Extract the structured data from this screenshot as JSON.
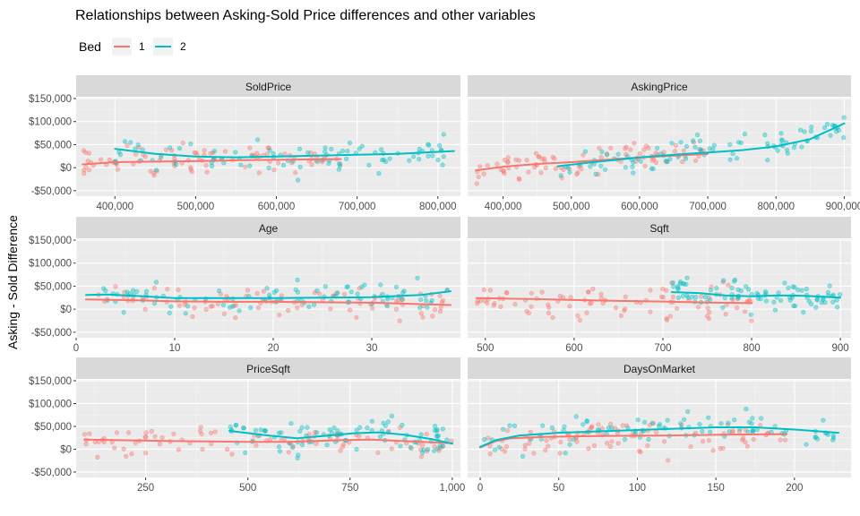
{
  "chart_data": {
    "type": "scatter",
    "title": "Relationships between Asking-Sold Price differences and other variables",
    "ylabel": "Asking - Sold Difference",
    "legend": {
      "title": "Bed",
      "position": "top-left",
      "entries": [
        {
          "label": "1",
          "color": "#F8766D"
        },
        {
          "label": "2",
          "color": "#00BFC4"
        }
      ]
    },
    "y_axis": {
      "range": [
        -62000,
        152000
      ],
      "ticks": [
        {
          "value": -50000,
          "label": "-$50,000"
        },
        {
          "value": 0,
          "label": "$0"
        },
        {
          "value": 50000,
          "label": "$50,000"
        },
        {
          "value": 100000,
          "label": "$100,000"
        },
        {
          "value": 150000,
          "label": "$150,000"
        }
      ]
    },
    "panels": [
      {
        "name": "SoldPrice",
        "xlim": [
          352000,
          828000
        ],
        "xticks": [
          {
            "value": 400000,
            "label": "400,000"
          },
          {
            "value": 500000,
            "label": "500,000"
          },
          {
            "value": 600000,
            "label": "600,000"
          },
          {
            "value": 700000,
            "label": "700,000"
          },
          {
            "value": 800000,
            "label": "800,000"
          }
        ],
        "series": [
          {
            "name": "1",
            "color": "#F8766D",
            "x_range": [
              360000,
              680000
            ],
            "smooth": [
              [
                360000,
                7000
              ],
              [
                400000,
                12000
              ],
              [
                450000,
                13000
              ],
              [
                500000,
                14000
              ],
              [
                550000,
                16000
              ],
              [
                600000,
                17000
              ],
              [
                650000,
                18000
              ],
              [
                680000,
                18500
              ]
            ]
          },
          {
            "name": "2",
            "color": "#00BFC4",
            "x_range": [
              400000,
              820000
            ],
            "smooth": [
              [
                400000,
                41000
              ],
              [
                450000,
                30000
              ],
              [
                500000,
                24000
              ],
              [
                550000,
                22500
              ],
              [
                600000,
                24000
              ],
              [
                650000,
                26000
              ],
              [
                700000,
                28000
              ],
              [
                750000,
                30000
              ],
              [
                820000,
                36000
              ]
            ]
          }
        ]
      },
      {
        "name": "AskingPrice",
        "xlim": [
          348000,
          910000
        ],
        "xticks": [
          {
            "value": 400000,
            "label": "400,000"
          },
          {
            "value": 500000,
            "label": "500,000"
          },
          {
            "value": 600000,
            "label": "600,000"
          },
          {
            "value": 700000,
            "label": "700,000"
          },
          {
            "value": 800000,
            "label": "800,000"
          },
          {
            "value": 900000,
            "label": "900,000"
          }
        ],
        "series": [
          {
            "name": "1",
            "color": "#F8766D",
            "x_range": [
              360000,
              700000
            ],
            "smooth": [
              [
                360000,
                -6000
              ],
              [
                400000,
                2000
              ],
              [
                450000,
                8000
              ],
              [
                500000,
                12000
              ],
              [
                550000,
                17000
              ],
              [
                600000,
                22000
              ],
              [
                650000,
                26000
              ],
              [
                700000,
                30000
              ]
            ]
          },
          {
            "name": "2",
            "color": "#00BFC4",
            "x_range": [
              480000,
              900000
            ],
            "smooth": [
              [
                480000,
                3000
              ],
              [
                520000,
                10000
              ],
              [
                560000,
                16000
              ],
              [
                600000,
                22000
              ],
              [
                650000,
                28000
              ],
              [
                700000,
                33000
              ],
              [
                750000,
                38000
              ],
              [
                800000,
                46000
              ],
              [
                850000,
                62000
              ],
              [
                900000,
                96000
              ]
            ]
          }
        ]
      },
      {
        "name": "Age",
        "xlim": [
          0,
          39
        ],
        "xticks": [
          {
            "value": 0,
            "label": "0"
          },
          {
            "value": 10,
            "label": "10"
          },
          {
            "value": 20,
            "label": "20"
          },
          {
            "value": 30,
            "label": "30"
          }
        ],
        "series": [
          {
            "name": "1",
            "color": "#F8766D",
            "x_range": [
              1,
              38
            ],
            "smooth": [
              [
                1,
                21000
              ],
              [
                5,
                20000
              ],
              [
                10,
                17000
              ],
              [
                15,
                16000
              ],
              [
                20,
                16000
              ],
              [
                25,
                15000
              ],
              [
                30,
                14000
              ],
              [
                38,
                9000
              ]
            ]
          },
          {
            "name": "2",
            "color": "#00BFC4",
            "x_range": [
              1,
              38
            ],
            "smooth": [
              [
                1,
                31000
              ],
              [
                3,
                32000
              ],
              [
                6,
                29000
              ],
              [
                10,
                24000
              ],
              [
                15,
                24000
              ],
              [
                20,
                24000
              ],
              [
                25,
                25000
              ],
              [
                30,
                26000
              ],
              [
                35,
                31000
              ],
              [
                38,
                39000
              ]
            ]
          }
        ]
      },
      {
        "name": "Sqft",
        "xlim": [
          480,
          912
        ],
        "xticks": [
          {
            "value": 500,
            "label": "500"
          },
          {
            "value": 600,
            "label": "600"
          },
          {
            "value": 700,
            "label": "700"
          },
          {
            "value": 800,
            "label": "800"
          },
          {
            "value": 900,
            "label": "900"
          }
        ],
        "series": [
          {
            "name": "1",
            "color": "#F8766D",
            "x_range": [
              490,
              800
            ],
            "smooth": [
              [
                490,
                24000
              ],
              [
                550,
                22000
              ],
              [
                600,
                20000
              ],
              [
                650,
                18000
              ],
              [
                700,
                16500
              ],
              [
                750,
                14500
              ],
              [
                800,
                13000
              ]
            ]
          },
          {
            "name": "2",
            "color": "#00BFC4",
            "x_range": [
              710,
              900
            ],
            "smooth": [
              [
                710,
                37000
              ],
              [
                740,
                35000
              ],
              [
                770,
                30000
              ],
              [
                800,
                28000
              ],
              [
                830,
                30000
              ],
              [
                860,
                29000
              ],
              [
                900,
                25000
              ]
            ]
          }
        ]
      },
      {
        "name": "PriceSqft",
        "xlim": [
          80,
          1020
        ],
        "xticks": [
          {
            "value": 250,
            "label": "250"
          },
          {
            "value": 500,
            "label": "500"
          },
          {
            "value": 750,
            "label": "750"
          },
          {
            "value": 1000,
            "label": "1,000"
          }
        ],
        "series": [
          {
            "name": "1",
            "color": "#F8766D",
            "x_range": [
              100,
              1000
            ],
            "smooth": [
              [
                100,
                21000
              ],
              [
                300,
                18000
              ],
              [
                500,
                16000
              ],
              [
                600,
                16000
              ],
              [
                700,
                19000
              ],
              [
                800,
                21000
              ],
              [
                900,
                17000
              ],
              [
                1000,
                13000
              ]
            ]
          },
          {
            "name": "2",
            "color": "#00BFC4",
            "x_range": [
              455,
              1000
            ],
            "smooth": [
              [
                455,
                40000
              ],
              [
                550,
                30000
              ],
              [
                620,
                24000
              ],
              [
                700,
                30000
              ],
              [
                760,
                35000
              ],
              [
                820,
                37000
              ],
              [
                880,
                32000
              ],
              [
                950,
                22000
              ],
              [
                1000,
                12000
              ]
            ]
          }
        ]
      },
      {
        "name": "DaysOnMarket",
        "xlim": [
          -8,
          236
        ],
        "xticks": [
          {
            "value": 0,
            "label": "0"
          },
          {
            "value": 50,
            "label": "50"
          },
          {
            "value": 100,
            "label": "100"
          },
          {
            "value": 150,
            "label": "150"
          },
          {
            "value": 200,
            "label": "200"
          }
        ],
        "series": [
          {
            "name": "1",
            "color": "#F8766D",
            "x_range": [
              0,
              195
            ],
            "smooth": [
              [
                0,
                4000
              ],
              [
                10,
                18000
              ],
              [
                20,
                24000
              ],
              [
                40,
                27000
              ],
              [
                80,
                29000
              ],
              [
                120,
                30000
              ],
              [
                160,
                32000
              ],
              [
                195,
                33000
              ]
            ]
          },
          {
            "name": "2",
            "color": "#00BFC4",
            "x_range": [
              0,
              228
            ],
            "smooth": [
              [
                0,
                5000
              ],
              [
                10,
                20000
              ],
              [
                25,
                30000
              ],
              [
                50,
                36000
              ],
              [
                100,
                42000
              ],
              [
                150,
                48000
              ],
              [
                175,
                48000
              ],
              [
                200,
                43000
              ],
              [
                228,
                36000
              ]
            ]
          }
        ]
      }
    ]
  }
}
